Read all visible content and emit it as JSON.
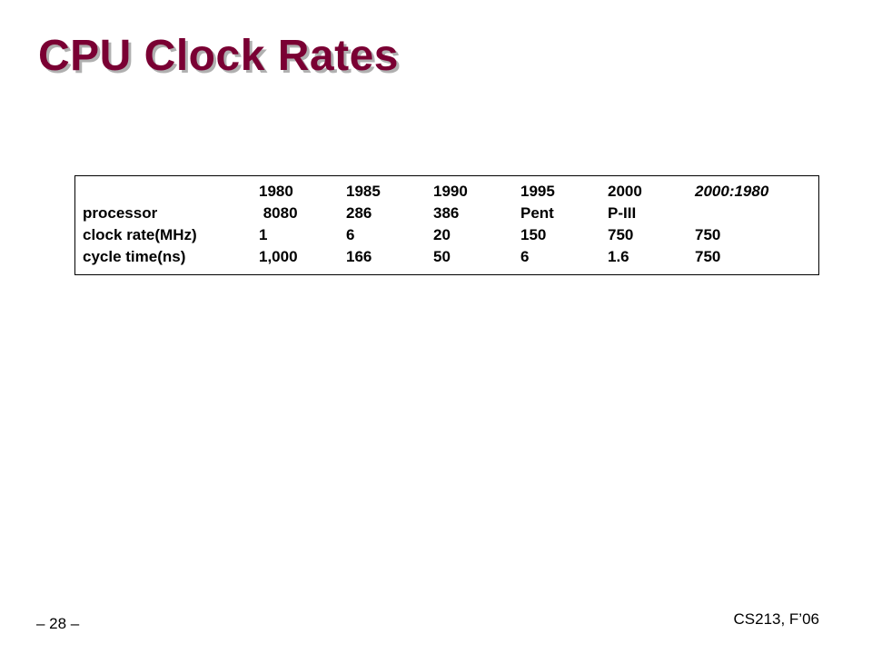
{
  "slide": {
    "title": "CPU Clock Rates",
    "page_number": "– 28 –",
    "course": "CS213, F’06",
    "accent_color": "#7a0033"
  },
  "table": {
    "header": [
      "",
      "1980",
      "1985",
      "1990",
      "1995",
      "2000",
      "2000:1980"
    ],
    "rows": [
      [
        "processor",
        " 8080",
        "286",
        "386",
        "Pent",
        "P-III",
        ""
      ],
      [
        "clock rate(MHz)",
        "1",
        "6",
        "20",
        "150",
        "750",
        "750"
      ],
      [
        "cycle time(ns)",
        "1,000",
        "166",
        "50",
        "6",
        "1.6",
        "750"
      ]
    ]
  }
}
